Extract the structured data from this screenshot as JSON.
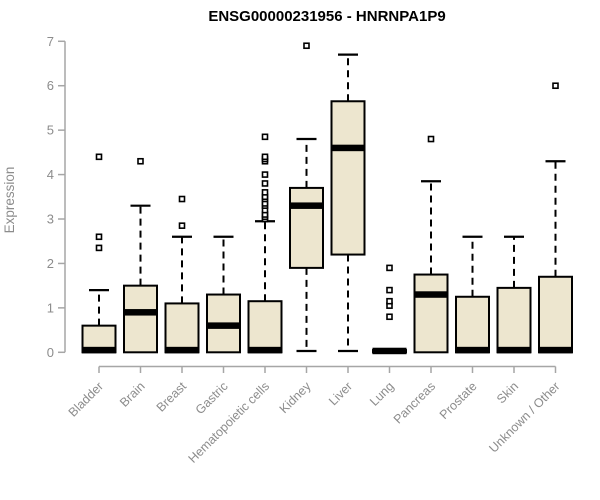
{
  "title": "ENSG00000231956 - HNRNPA1P9",
  "colors": {
    "box_fill": "#EDE6CF",
    "box_stroke": "#000000",
    "median": "#000000",
    "axis_line": "#a6a6a6",
    "axis_text": "#8c8c8c",
    "title_text": "#000000",
    "background": "#ffffff"
  },
  "chart_data": {
    "type": "boxplot",
    "title": "ENSG00000231956 - HNRNPA1P9",
    "xlabel": "",
    "ylabel": "Expression",
    "ylim": [
      0,
      7
    ],
    "yticks": [
      0,
      1,
      2,
      3,
      4,
      5,
      6,
      7
    ],
    "grid": "off",
    "legend": "none",
    "categories": [
      "Bladder",
      "Brain",
      "Breast",
      "Gastric",
      "Hematopoietic cells",
      "Kidney",
      "Liver",
      "Lung",
      "Pancreas",
      "Prostate",
      "Skin",
      "Unknown / Other"
    ],
    "series": [
      {
        "name": "Bladder",
        "whisker_low": 0,
        "q1": 0,
        "median": 0.05,
        "q3": 0.6,
        "whisker_high": 1.4,
        "outliers": [
          2.35,
          2.6,
          4.4
        ]
      },
      {
        "name": "Brain",
        "whisker_low": 0,
        "q1": 0,
        "median": 0.9,
        "q3": 1.5,
        "whisker_high": 3.3,
        "outliers": [
          4.3
        ]
      },
      {
        "name": "Breast",
        "whisker_low": 0,
        "q1": 0,
        "median": 0.05,
        "q3": 1.1,
        "whisker_high": 2.6,
        "outliers": [
          2.85,
          3.45
        ]
      },
      {
        "name": "Gastric",
        "whisker_low": 0,
        "q1": 0,
        "median": 0.6,
        "q3": 1.3,
        "whisker_high": 2.6,
        "outliers": []
      },
      {
        "name": "Hematopoietic cells",
        "whisker_low": 0,
        "q1": 0,
        "median": 0.05,
        "q3": 1.15,
        "whisker_high": 2.95,
        "outliers": [
          3.0,
          3.05,
          3.1,
          3.2,
          3.3,
          3.35,
          3.45,
          3.5,
          3.6,
          3.8,
          4.0,
          4.3,
          4.35,
          4.4,
          4.85
        ]
      },
      {
        "name": "Kidney",
        "whisker_low": 0.03,
        "q1": 1.9,
        "median": 3.3,
        "q3": 3.7,
        "whisker_high": 4.8,
        "outliers": [
          6.9
        ]
      },
      {
        "name": "Liver",
        "whisker_low": 0.03,
        "q1": 2.2,
        "median": 4.6,
        "q3": 5.65,
        "whisker_high": 6.7,
        "outliers": []
      },
      {
        "name": "Lung",
        "whisker_low": 0,
        "q1": 0,
        "median": 0.03,
        "q3": 0.05,
        "whisker_high": 0.05,
        "outliers": [
          0.8,
          1.05,
          1.15,
          1.4,
          1.9
        ]
      },
      {
        "name": "Pancreas",
        "whisker_low": 0,
        "q1": 0,
        "median": 1.3,
        "q3": 1.75,
        "whisker_high": 3.85,
        "outliers": [
          4.8
        ]
      },
      {
        "name": "Prostate",
        "whisker_low": 0,
        "q1": 0,
        "median": 0.05,
        "q3": 1.25,
        "whisker_high": 2.6,
        "outliers": []
      },
      {
        "name": "Skin",
        "whisker_low": 0,
        "q1": 0,
        "median": 0.05,
        "q3": 1.45,
        "whisker_high": 2.6,
        "outliers": []
      },
      {
        "name": "Unknown / Other",
        "whisker_low": 0,
        "q1": 0,
        "median": 0.05,
        "q3": 1.7,
        "whisker_high": 4.3,
        "outliers": [
          6.0
        ]
      }
    ]
  }
}
